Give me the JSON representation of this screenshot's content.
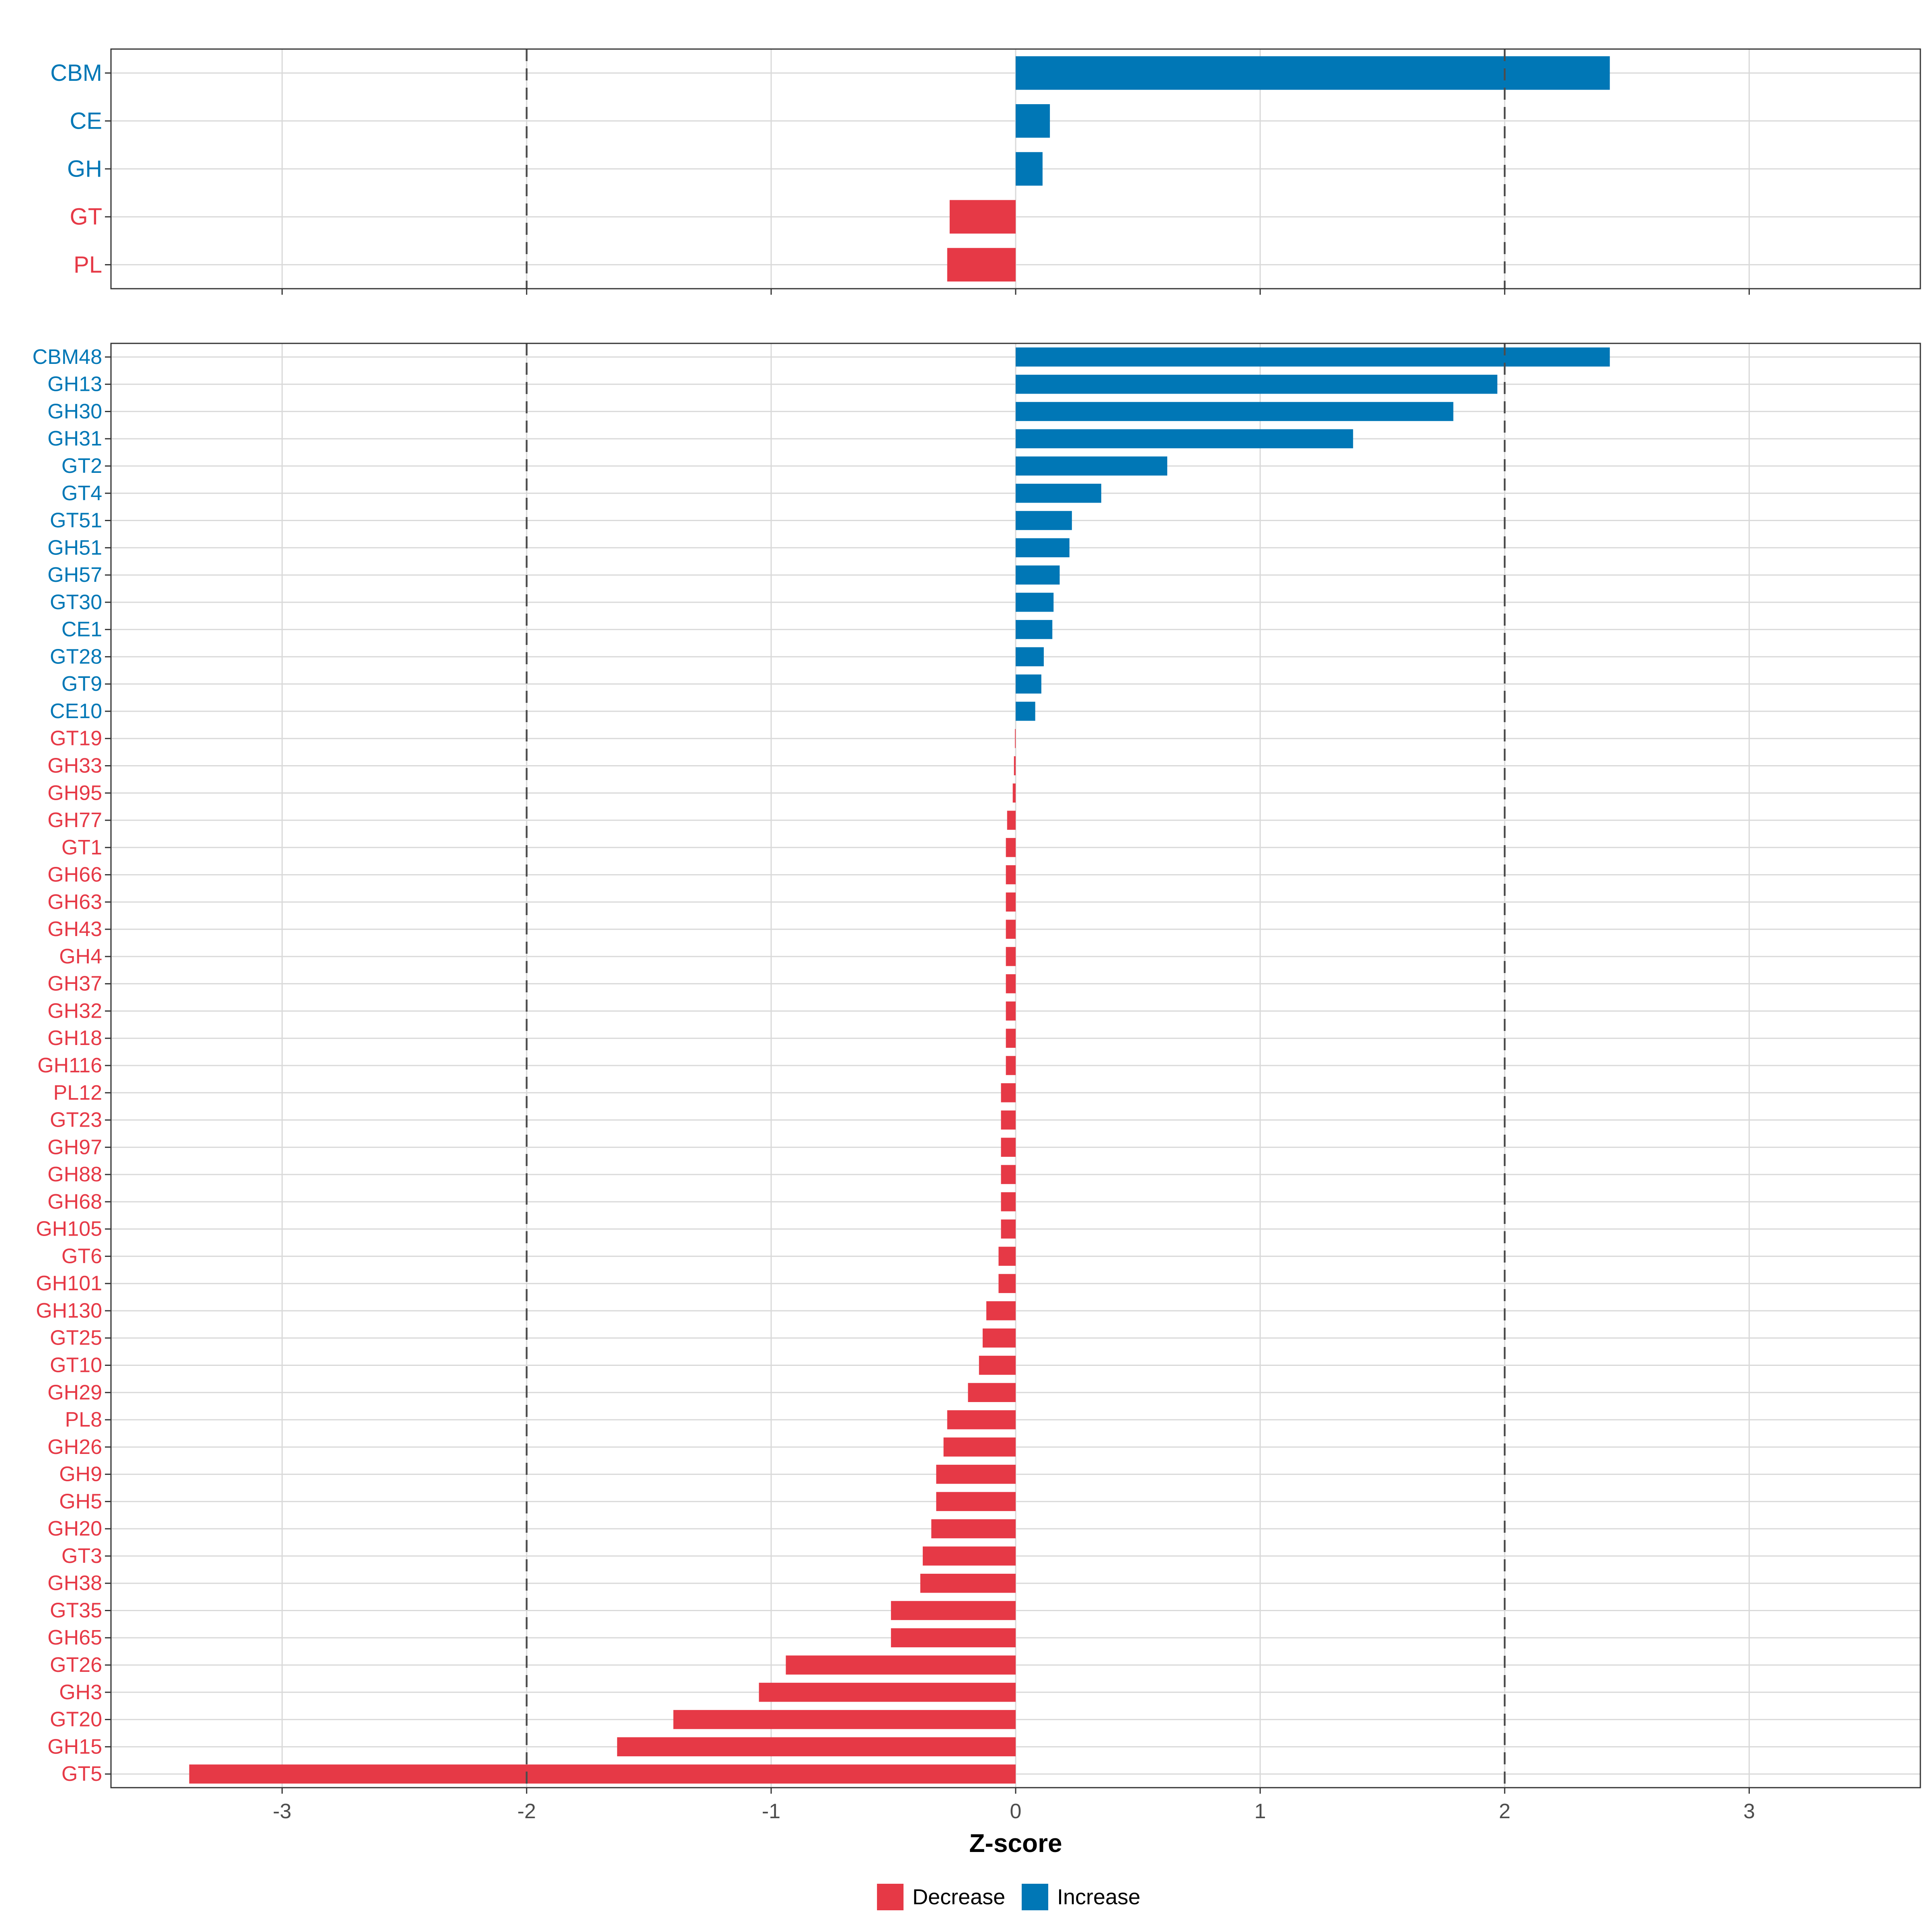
{
  "chart_data": [
    {
      "type": "bar",
      "orientation": "horizontal",
      "panel": "class",
      "title": "",
      "xlabel": "",
      "ylabel": "",
      "xlim": [
        -3.7,
        3.7
      ],
      "xticks": [
        -3,
        -2,
        -1,
        0,
        1,
        2,
        3
      ],
      "show_tick_labels": false,
      "reference_lines": [
        -2,
        2
      ],
      "grid": true,
      "categories": [
        "CBM",
        "CE",
        "GH",
        "GT",
        "PL"
      ],
      "values": [
        2.43,
        0.14,
        0.11,
        -0.27,
        -0.28
      ]
    },
    {
      "type": "bar",
      "orientation": "horizontal",
      "panel": "family",
      "title": "",
      "xlabel": "Z-score",
      "ylabel": "",
      "xlim": [
        -3.7,
        3.7
      ],
      "xticks": [
        -3,
        -2,
        -1,
        0,
        1,
        2,
        3
      ],
      "show_tick_labels": true,
      "reference_lines": [
        -2,
        2
      ],
      "grid": true,
      "categories": [
        "CBM48",
        "GH13",
        "GH30",
        "GH31",
        "GT2",
        "GT4",
        "GT51",
        "GH51",
        "GH57",
        "GT30",
        "CE1",
        "GT28",
        "GT9",
        "CE10",
        "GT19",
        "GH33",
        "GH95",
        "GH77",
        "GT1",
        "GH66",
        "GH63",
        "GH43",
        "GH4",
        "GH37",
        "GH32",
        "GH18",
        "GH116",
        "PL12",
        "GT23",
        "GH97",
        "GH88",
        "GH68",
        "GH105",
        "GT6",
        "GH101",
        "GH130",
        "GT25",
        "GT10",
        "GH29",
        "PL8",
        "GH26",
        "GH9",
        "GH5",
        "GH20",
        "GT3",
        "GH38",
        "GT35",
        "GH65",
        "GT26",
        "GH3",
        "GT20",
        "GH15",
        "GT5"
      ],
      "values": [
        2.43,
        1.97,
        1.79,
        1.38,
        0.62,
        0.35,
        0.23,
        0.22,
        0.18,
        0.155,
        0.15,
        0.115,
        0.105,
        0.08,
        -0.003,
        -0.007,
        -0.012,
        -0.035,
        -0.04,
        -0.04,
        -0.04,
        -0.04,
        -0.04,
        -0.04,
        -0.04,
        -0.04,
        -0.04,
        -0.06,
        -0.06,
        -0.06,
        -0.06,
        -0.06,
        -0.06,
        -0.07,
        -0.07,
        -0.12,
        -0.135,
        -0.15,
        -0.195,
        -0.28,
        -0.295,
        -0.325,
        -0.325,
        -0.345,
        -0.38,
        -0.39,
        -0.51,
        -0.51,
        -0.94,
        -1.05,
        -1.4,
        -1.63,
        -3.38
      ]
    }
  ],
  "legend": {
    "position": "bottom",
    "items": [
      {
        "label": "Decrease",
        "color": "#E63946"
      },
      {
        "label": "Increase",
        "color": "#0077B6"
      }
    ]
  },
  "colors": {
    "decrease": "#E63946",
    "increase": "#0077B6",
    "grid": "#D9D9D9",
    "reference_line": "#4D4D4D",
    "panel_border": "#333333",
    "axis_text": "#4D4D4D",
    "axis_title": "#000000"
  }
}
